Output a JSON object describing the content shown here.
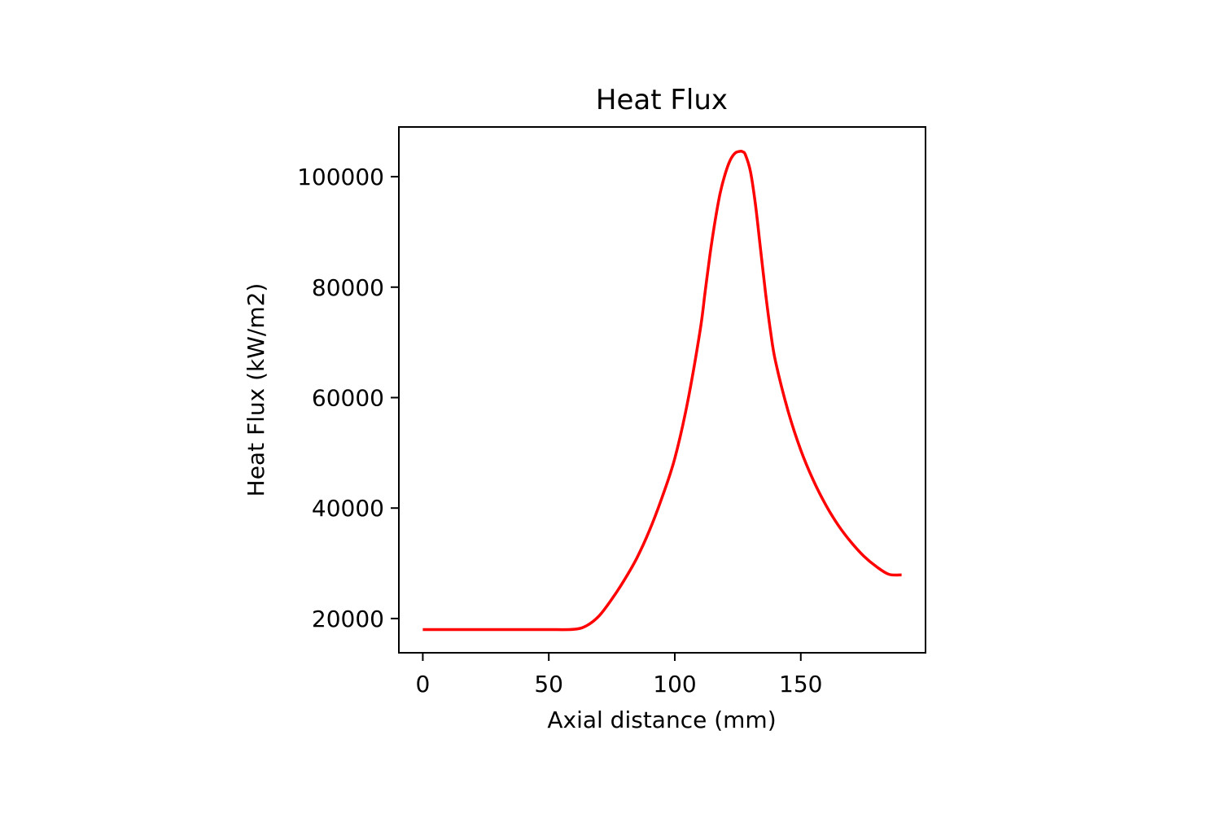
{
  "chart_data": {
    "type": "line",
    "title": "Heat Flux",
    "xlabel": "Axial distance (mm)",
    "ylabel": "Heat Flux (kW/m2)",
    "xlim": [
      -9.5,
      199.5
    ],
    "ylim": [
      13800,
      109000
    ],
    "xticks": [
      0,
      50,
      100,
      150
    ],
    "yticks": [
      20000,
      40000,
      60000,
      80000,
      100000
    ],
    "grid": false,
    "series": [
      {
        "color": "#ff0000",
        "x": [
          0,
          10,
          20,
          30,
          40,
          50,
          60,
          65,
          70,
          75,
          80,
          85,
          90,
          95,
          100,
          105,
          110,
          112,
          114,
          116,
          118,
          120,
          122,
          124,
          126,
          127,
          128,
          130,
          132,
          134,
          136,
          138,
          140,
          145,
          150,
          155,
          160,
          165,
          170,
          175,
          180,
          185,
          190
        ],
        "y": [
          18000,
          18000,
          18000,
          18000,
          18000,
          18000,
          18050,
          18700,
          20500,
          23500,
          27000,
          31000,
          36000,
          42000,
          49000,
          59000,
          72000,
          79000,
          86000,
          92000,
          97000,
          100500,
          103000,
          104300,
          104600,
          104500,
          104000,
          101000,
          95000,
          87000,
          79000,
          72000,
          66500,
          57500,
          50500,
          45000,
          40500,
          36800,
          33800,
          31300,
          29400,
          28000,
          27900
        ]
      }
    ]
  }
}
